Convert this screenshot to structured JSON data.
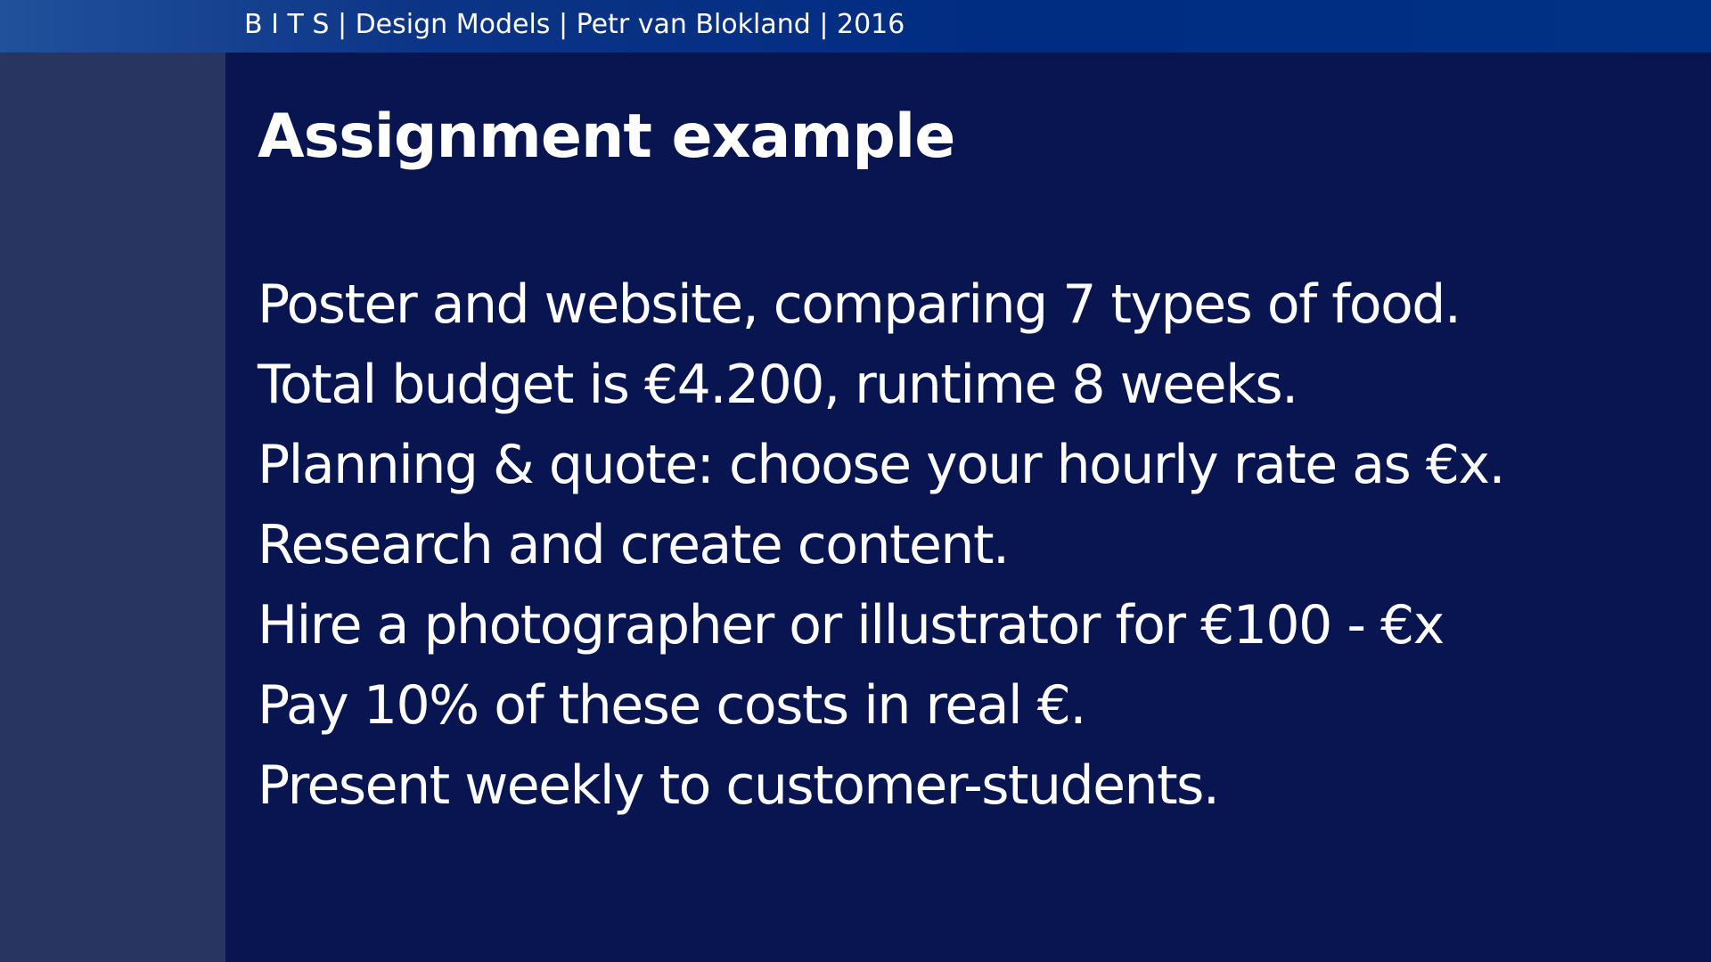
{
  "header": {
    "text": "B I T S | Design Models | Petr van Blokland | 2016"
  },
  "slide": {
    "title": "Assignment example",
    "lines": [
      "Poster and website, comparing 7 types of food.",
      "Total budget is €4.200, runtime 8 weeks.",
      "Planning & quote: choose your hourly rate as €x.",
      "Research and create content.",
      "Hire a photographer or illustrator for €100 - €x",
      "Pay 10% of these costs in real €.",
      "Present weekly to customer-students."
    ]
  },
  "colors": {
    "background": "#081550",
    "top_bar": "#002c80",
    "left_panel": "#283560",
    "text": "#ffffff"
  }
}
